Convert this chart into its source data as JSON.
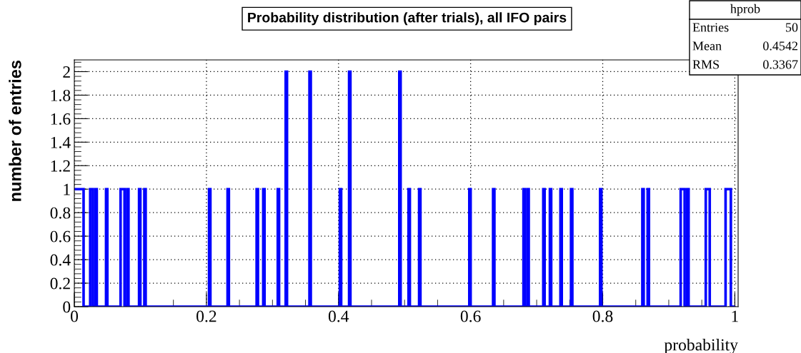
{
  "chart_data": {
    "type": "histogram",
    "title": "Probability distribution (after trials), all IFO pairs",
    "xlabel": "probability",
    "ylabel": "number of entries",
    "bins": [
      0,
      0.002,
      0.004,
      0.006,
      0.008,
      0.01,
      0.012,
      0.014,
      0.024,
      0.026,
      0.028,
      0.032,
      0.034,
      0.048,
      0.05,
      0.07,
      0.072,
      0.074,
      0.076,
      0.08,
      0.082,
      0.098,
      0.1,
      0.106,
      0.108,
      0.204,
      0.206,
      0.232,
      0.234,
      0.276,
      0.278,
      0.286,
      0.288,
      0.308,
      0.31,
      0.32,
      0.322,
      0.356,
      0.358,
      0.402,
      0.404,
      0.416,
      0.418,
      0.492,
      0.494,
      0.506,
      0.508,
      0.522,
      0.524,
      0.598,
      0.6,
      0.634,
      0.636,
      0.68,
      0.682,
      0.686,
      0.688,
      0.71,
      0.712,
      0.72,
      0.722,
      0.736,
      0.738,
      0.752,
      0.754,
      0.796,
      0.798,
      0.86,
      0.862,
      0.868,
      0.87,
      0.918,
      0.92,
      0.922,
      0.924,
      0.928,
      0.93,
      0.956,
      0.958,
      0.96,
      0.962,
      0.986,
      0.988,
      0.99,
      0.992,
      0.994,
      1
    ],
    "values": [
      1,
      1,
      1,
      1,
      1,
      1,
      1,
      0,
      1,
      1,
      0,
      1,
      0,
      1,
      0,
      1,
      1,
      1,
      0,
      1,
      0,
      1,
      0,
      1,
      0,
      1,
      0,
      1,
      0,
      1,
      0,
      1,
      0,
      1,
      0,
      2,
      0,
      2,
      0,
      1,
      0,
      2,
      0,
      2,
      0,
      1,
      0,
      1,
      0,
      1,
      0,
      1,
      0,
      1,
      0,
      1,
      0,
      1,
      0,
      1,
      0,
      1,
      0,
      1,
      0,
      1,
      0,
      1,
      0,
      1,
      0,
      1,
      1,
      1,
      0,
      1,
      0,
      1,
      1,
      1,
      0,
      1,
      1,
      1,
      1,
      0
    ],
    "color": "#0000ff",
    "xlim": [
      0,
      1.005
    ],
    "ylim": [
      0,
      2.1
    ],
    "xticks": [
      0,
      0.2,
      0.4,
      0.6,
      0.8,
      1
    ],
    "yticks": [
      0,
      0.2,
      0.4,
      0.6,
      0.8,
      1,
      1.2,
      1.4,
      1.6,
      1.8,
      2
    ],
    "grid": true,
    "annotations": [
      "hprob",
      "Entries",
      "50",
      "Mean",
      "0.4542",
      "RMS",
      "0.3367"
    ]
  }
}
